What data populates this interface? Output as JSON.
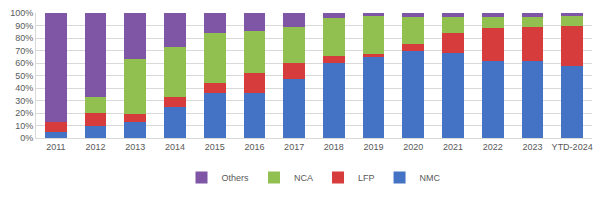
{
  "chart_data": {
    "type": "bar",
    "stacked": true,
    "grid": true,
    "legend": "bottom",
    "categories": [
      "2011",
      "2012",
      "2013",
      "2014",
      "2015",
      "2016",
      "2017",
      "2018",
      "2019",
      "2020",
      "2021",
      "2022",
      "2023",
      "YTD-2024"
    ],
    "series": [
      {
        "name": "NMC",
        "color": "#4472c4",
        "values": [
          5,
          10,
          13,
          25,
          36,
          36,
          47,
          60,
          65,
          70,
          68,
          62,
          62,
          58
        ]
      },
      {
        "name": "LFP",
        "color": "#d63c3c",
        "values": [
          8,
          10,
          6,
          8,
          8,
          16,
          13,
          6,
          2,
          5,
          16,
          26,
          27,
          32
        ]
      },
      {
        "name": "NCA",
        "color": "#92c050",
        "values": [
          0,
          13,
          44,
          40,
          40,
          34,
          29,
          30,
          31,
          22,
          13,
          9,
          8,
          8
        ]
      },
      {
        "name": "Others",
        "color": "#7f55a5",
        "values": [
          87,
          67,
          37,
          27,
          16,
          14,
          11,
          4,
          2,
          3,
          3,
          3,
          3,
          2
        ]
      }
    ],
    "ylim": [
      0,
      100
    ],
    "yticks": [
      {
        "value": 0,
        "label": "0%"
      },
      {
        "value": 10,
        "label": "10%"
      },
      {
        "value": 20,
        "label": "20%"
      },
      {
        "value": 30,
        "label": "30%"
      },
      {
        "value": 40,
        "label": "40%"
      },
      {
        "value": 50,
        "label": "50%"
      },
      {
        "value": 60,
        "label": "60%"
      },
      {
        "value": 70,
        "label": "70%"
      },
      {
        "value": 80,
        "label": "80%"
      },
      {
        "value": 90,
        "label": "90%"
      },
      {
        "value": 100,
        "label": "100%"
      }
    ]
  }
}
